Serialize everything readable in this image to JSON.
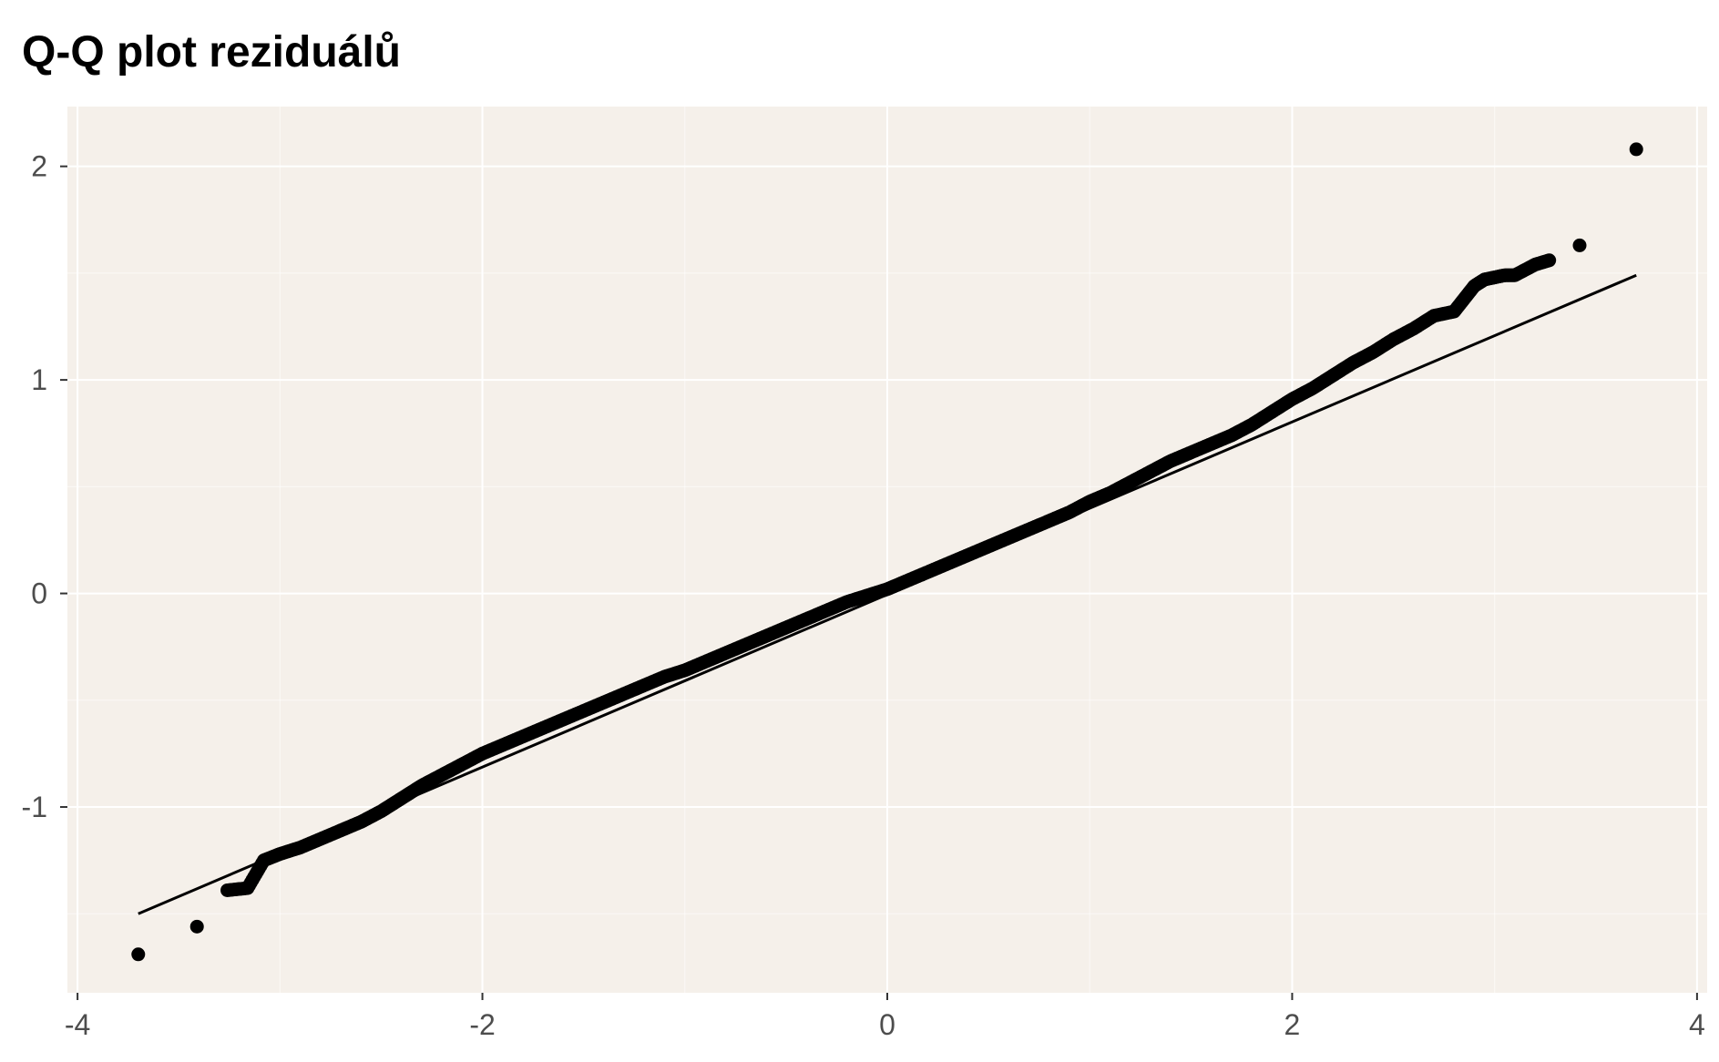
{
  "chart_data": {
    "type": "scatter",
    "title": "Q-Q plot reziduálů",
    "xlabel": "",
    "ylabel": "",
    "xlim": [
      -4.05,
      4.05
    ],
    "ylim": [
      -1.87,
      2.28
    ],
    "x_ticks": [
      -4,
      -2,
      0,
      2,
      4
    ],
    "x_tick_labels": [
      "-4",
      "-2",
      "0",
      "2",
      "4"
    ],
    "y_ticks": [
      -1,
      0,
      1,
      2
    ],
    "y_tick_labels": [
      "-1",
      "0",
      "1",
      "2"
    ],
    "grid": true,
    "legend": "none",
    "colors": {
      "panel": "#f5f0ea",
      "grid": "#ffffff",
      "points": "#000000",
      "line": "#000000",
      "tick_text": "#4d4d4d"
    },
    "reference_line": {
      "x": [
        -3.7,
        3.7
      ],
      "y": [
        -1.5,
        1.49
      ]
    },
    "series": [
      {
        "x": [
          -3.7,
          -3.41,
          -3.26,
          -3.16,
          -3.08,
          -3.0,
          -2.9,
          -2.8,
          -2.7,
          -2.6,
          -2.5,
          -2.4,
          -2.3,
          -2.2,
          -2.1,
          -2.0,
          -1.9,
          -1.8,
          -1.7,
          -1.6,
          -1.5,
          -1.4,
          -1.3,
          -1.2,
          -1.1,
          -1.0,
          -0.9,
          -0.8,
          -0.7,
          -0.6,
          -0.5,
          -0.4,
          -0.3,
          -0.2,
          -0.1,
          0.0,
          0.1,
          0.2,
          0.3,
          0.4,
          0.5,
          0.6,
          0.7,
          0.8,
          0.9,
          1.0,
          1.1,
          1.2,
          1.3,
          1.4,
          1.5,
          1.6,
          1.7,
          1.8,
          1.9,
          2.0,
          2.1,
          2.2,
          2.3,
          2.4,
          2.5,
          2.6,
          2.7,
          2.8,
          2.85,
          2.9,
          2.95,
          3.0,
          3.05,
          3.1,
          3.2,
          3.27,
          3.42,
          3.7
        ],
        "y": [
          -1.69,
          -1.56,
          -1.39,
          -1.38,
          -1.25,
          -1.22,
          -1.19,
          -1.15,
          -1.11,
          -1.07,
          -1.02,
          -0.96,
          -0.9,
          -0.85,
          -0.8,
          -0.75,
          -0.71,
          -0.67,
          -0.63,
          -0.59,
          -0.55,
          -0.51,
          -0.47,
          -0.43,
          -0.39,
          -0.36,
          -0.32,
          -0.28,
          -0.24,
          -0.2,
          -0.16,
          -0.12,
          -0.08,
          -0.04,
          -0.01,
          0.02,
          0.06,
          0.1,
          0.14,
          0.18,
          0.22,
          0.26,
          0.3,
          0.34,
          0.38,
          0.43,
          0.47,
          0.52,
          0.57,
          0.62,
          0.66,
          0.7,
          0.74,
          0.79,
          0.85,
          0.91,
          0.96,
          1.02,
          1.08,
          1.13,
          1.19,
          1.24,
          1.3,
          1.32,
          1.38,
          1.44,
          1.47,
          1.48,
          1.49,
          1.49,
          1.54,
          1.56,
          1.63,
          2.08
        ]
      }
    ]
  }
}
